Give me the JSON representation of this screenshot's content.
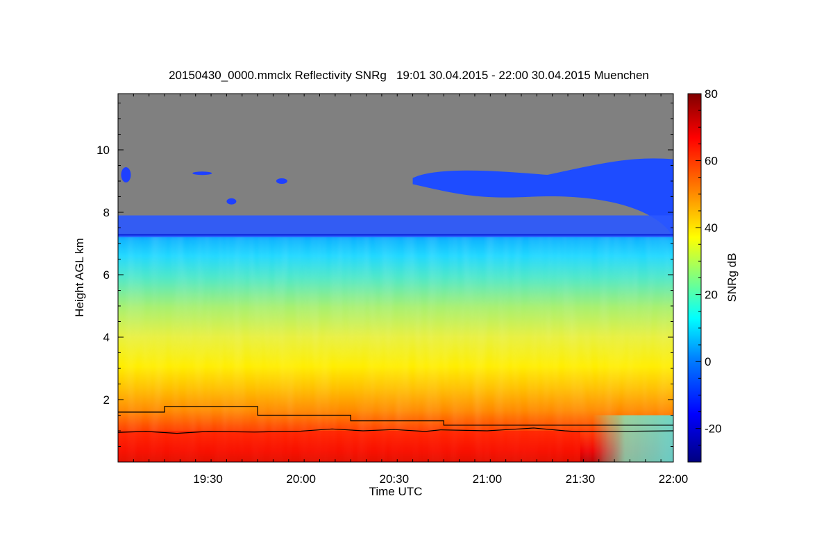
{
  "chart_data": {
    "type": "heatmap",
    "title": "20150430_0000.mmclx Reflectivity SNRg   19:01 30.04.2015 - 22:00 30.04.2015 Muenchen",
    "xlabel": "Time UTC",
    "ylabel": "Height AGL km",
    "x_range": [
      "19:01",
      "22:00"
    ],
    "x_ticks": [
      "19:30",
      "20:00",
      "20:30",
      "21:00",
      "21:30",
      "22:00"
    ],
    "y_range": [
      0,
      11.8
    ],
    "y_ticks": [
      "2",
      "4",
      "6",
      "8",
      "10"
    ],
    "colorbar": {
      "label": "SNRg dB",
      "range": [
        -30,
        80
      ],
      "ticks": [
        "-20",
        "0",
        "20",
        "40",
        "60",
        "80"
      ]
    },
    "no_signal_color": "#808080",
    "colormap": [
      "#000080",
      "#0000ff",
      "#0080ff",
      "#00ffff",
      "#80ff80",
      "#ffff00",
      "#ff8000",
      "#ff0000",
      "#800000"
    ],
    "series": [
      {
        "kind": "step_line",
        "color": "#000000",
        "points": [
          {
            "t": "19:01",
            "km": 1.6
          },
          {
            "t": "19:16",
            "km": 1.6
          },
          {
            "t": "19:16",
            "km": 1.78
          },
          {
            "t": "19:46",
            "km": 1.78
          },
          {
            "t": "19:46",
            "km": 1.5
          },
          {
            "t": "20:16",
            "km": 1.5
          },
          {
            "t": "20:16",
            "km": 1.32
          },
          {
            "t": "20:46",
            "km": 1.32
          },
          {
            "t": "20:46",
            "km": 1.18
          },
          {
            "t": "22:00",
            "km": 1.18
          }
        ]
      },
      {
        "kind": "line",
        "color": "#000000",
        "points": [
          {
            "t": "19:01",
            "km": 0.95
          },
          {
            "t": "19:10",
            "km": 0.98
          },
          {
            "t": "19:20",
            "km": 0.92
          },
          {
            "t": "19:30",
            "km": 0.98
          },
          {
            "t": "19:45",
            "km": 0.96
          },
          {
            "t": "20:00",
            "km": 0.99
          },
          {
            "t": "20:10",
            "km": 1.06
          },
          {
            "t": "20:20",
            "km": 1.0
          },
          {
            "t": "20:30",
            "km": 1.04
          },
          {
            "t": "20:40",
            "km": 0.98
          },
          {
            "t": "20:45",
            "km": 1.03
          },
          {
            "t": "21:00",
            "km": 1.0
          },
          {
            "t": "21:10",
            "km": 1.06
          },
          {
            "t": "21:15",
            "km": 1.09
          },
          {
            "t": "21:25",
            "km": 1.0
          },
          {
            "t": "21:30",
            "km": 0.97
          },
          {
            "t": "22:00",
            "km": 1.0
          }
        ]
      }
    ],
    "echo_regions": [
      {
        "name": "no-signal",
        "t": [
          "19:01",
          "22:00"
        ],
        "km": [
          7.3,
          11.8
        ],
        "snr_db": null
      },
      {
        "name": "cirrus-band",
        "t": [
          "20:36",
          "22:00"
        ],
        "km": [
          8.5,
          9.8
        ],
        "snr_db": -15
      },
      {
        "name": "cloud-top-layer",
        "t": [
          "19:01",
          "22:00"
        ],
        "km": [
          7.2,
          7.9
        ],
        "snr_db": -10
      },
      {
        "name": "mid-level-cloud",
        "t": [
          "19:01",
          "22:00"
        ],
        "km": [
          5.0,
          7.2
        ],
        "snr_db": 10
      },
      {
        "name": "lower-cloud",
        "t": [
          "19:01",
          "22:00"
        ],
        "km": [
          2.5,
          5.0
        ],
        "snr_db": 30
      },
      {
        "name": "near-surface",
        "t": [
          "19:01",
          "21:30"
        ],
        "km": [
          0,
          1.0
        ],
        "snr_db": 70
      }
    ]
  }
}
